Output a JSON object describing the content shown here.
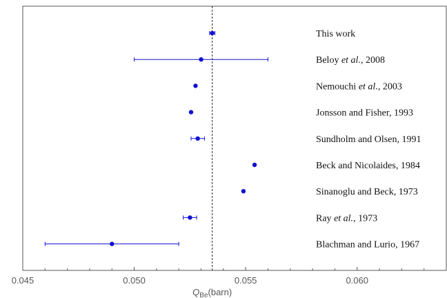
{
  "chart_data": {
    "type": "scatter",
    "xlabel_main": "Q",
    "xlabel_sub": "Be",
    "xlabel_unit": "(barn)",
    "xlim": [
      0.045,
      0.064
    ],
    "x_ticks": [
      "0.045",
      "0.050",
      "0.055",
      "0.060"
    ],
    "reference_x": 0.0535,
    "marker_color": "#1010d0",
    "points": [
      {
        "label_pre": "This work",
        "label_em": "",
        "label_post": "",
        "value": 0.0535,
        "err_low": 0.05338,
        "err_high": 0.05362
      },
      {
        "label_pre": "Beloy ",
        "label_em": "et al.",
        "label_post": ", 2008",
        "value": 0.053,
        "err_low": 0.05,
        "err_high": 0.056
      },
      {
        "label_pre": "Nemouchi ",
        "label_em": "et al.",
        "label_post": ", 2003",
        "value": 0.05275,
        "err_low": null,
        "err_high": null
      },
      {
        "label_pre": "Jonsson and Fisher, 1993",
        "label_em": "",
        "label_post": "",
        "value": 0.05255,
        "err_low": null,
        "err_high": null
      },
      {
        "label_pre": "Sundholm and Olsen, 1991",
        "label_em": "",
        "label_post": "",
        "value": 0.05285,
        "err_low": 0.05255,
        "err_high": 0.05315
      },
      {
        "label_pre": "Beck and Nicolaides, 1984",
        "label_em": "",
        "label_post": "",
        "value": 0.0554,
        "err_low": null,
        "err_high": null
      },
      {
        "label_pre": "Sinanoglu and Beck, 1973",
        "label_em": "",
        "label_post": "",
        "value": 0.0549,
        "err_low": null,
        "err_high": null
      },
      {
        "label_pre": "Ray ",
        "label_em": "et al.",
        "label_post": ", 1973",
        "value": 0.0525,
        "err_low": 0.0522,
        "err_high": 0.0528
      },
      {
        "label_pre": "Blachman and Lurio, 1967",
        "label_em": "",
        "label_post": "",
        "value": 0.049,
        "err_low": 0.046,
        "err_high": 0.052
      }
    ]
  }
}
